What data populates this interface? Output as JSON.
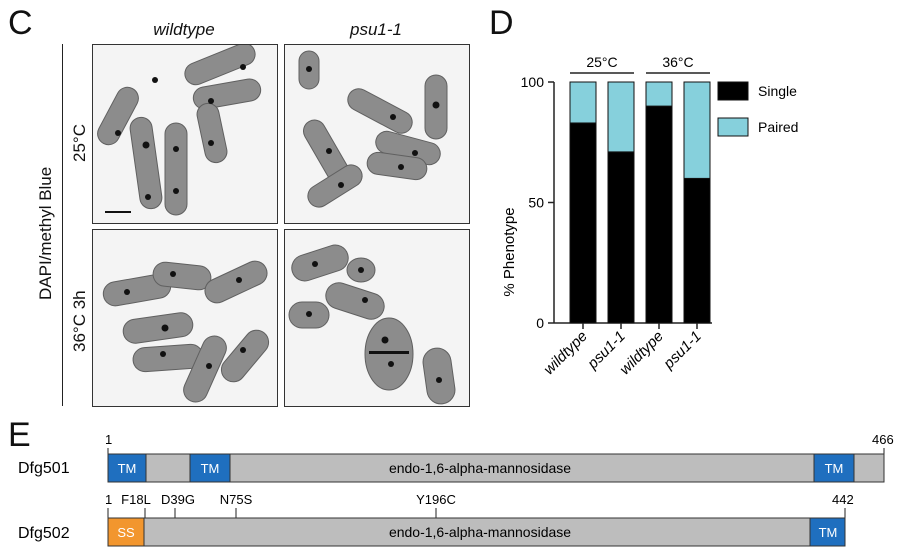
{
  "panel_c": {
    "letter": "C",
    "col_labels": [
      "wildtype",
      "psu1-1"
    ],
    "row_labels": [
      "25°C",
      "36°C 3h"
    ],
    "stain_label": "DAPI/methyl Blue"
  },
  "panel_d": {
    "letter": "D"
  },
  "chart_data": {
    "type": "bar",
    "stacked": true,
    "categories": [
      "wildtype",
      "psu1-1",
      "wildtype",
      "psu1-1"
    ],
    "groups": [
      {
        "label": "25°C",
        "categories": [
          "wildtype",
          "psu1-1"
        ]
      },
      {
        "label": "36°C",
        "categories": [
          "wildtype",
          "psu1-1"
        ]
      }
    ],
    "series": [
      {
        "name": "Single",
        "values": [
          83,
          71,
          90,
          60
        ],
        "color": "#000000"
      },
      {
        "name": "Paired",
        "values": [
          17,
          29,
          10,
          40
        ],
        "color": "#86d0dc"
      }
    ],
    "ylabel": "% Phenotype",
    "yticks": [
      "0",
      "50",
      "100"
    ],
    "ylim": [
      0,
      100
    ],
    "legend": "right"
  },
  "panel_e": {
    "letter": "E",
    "proteins": [
      {
        "name": "Dfg501",
        "start": "1",
        "end": "466",
        "domain_label": "endo-1,6-alpha-mannosidase",
        "segments": [
          {
            "label": "TM",
            "color": "#1f6fbf"
          },
          {
            "label": "TM",
            "color": "#1f6fbf"
          },
          {
            "label": "TM",
            "color": "#1f6fbf"
          }
        ]
      },
      {
        "name": "Dfg502",
        "start": "1",
        "end": "442",
        "domain_label": "endo-1,6-alpha-mannosidase",
        "segments": [
          {
            "label": "SS",
            "color": "#f2962e"
          },
          {
            "label": "TM",
            "color": "#1f6fbf"
          }
        ],
        "mutations": [
          "F18L",
          "D39G",
          "N75S",
          "Y196C"
        ]
      }
    ]
  }
}
